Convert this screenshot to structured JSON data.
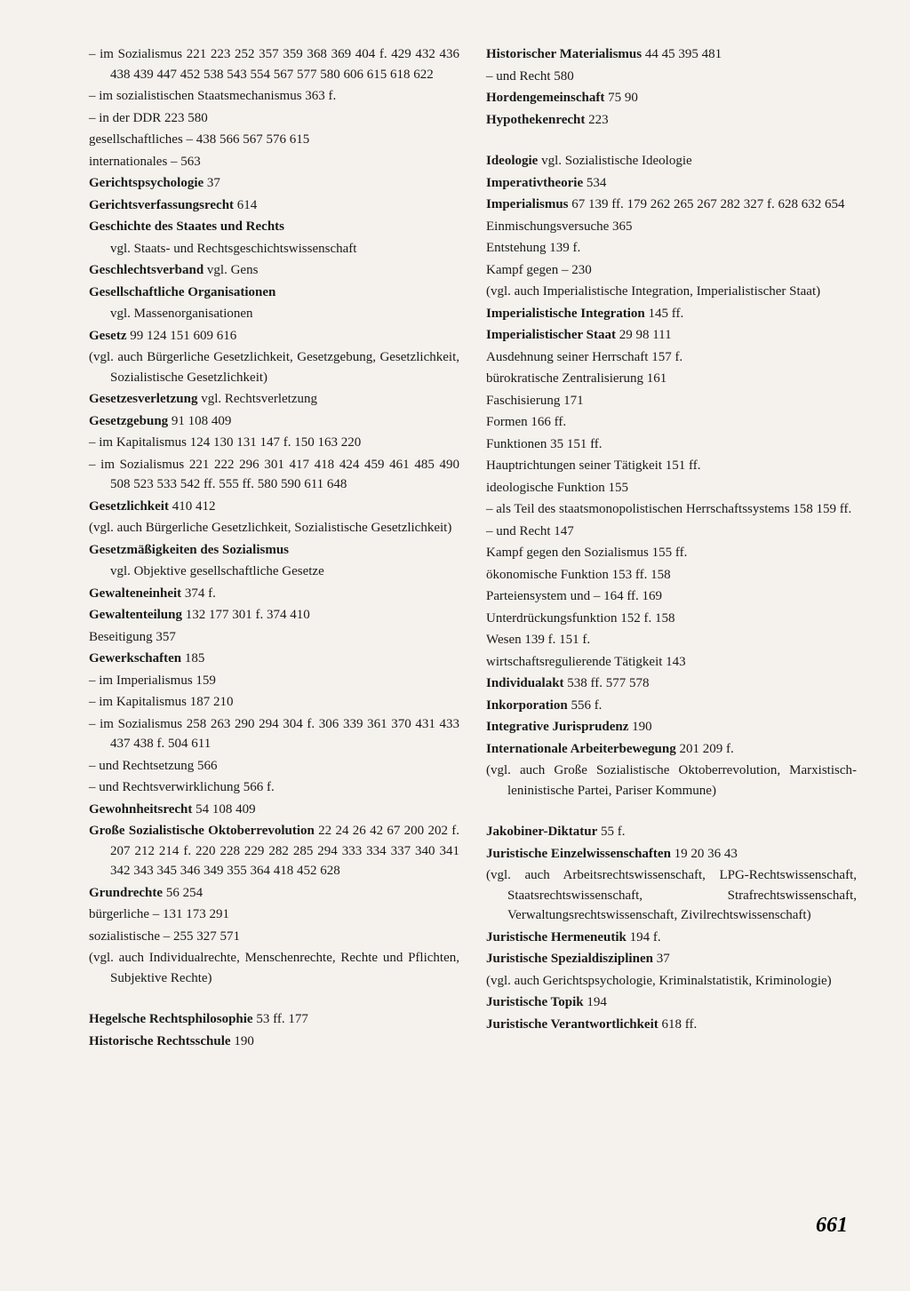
{
  "page_number": "661",
  "left_column": [
    {
      "type": "entry",
      "text": "– im Sozialismus  221 223 252 357 359 368 369 404 f. 429 432 436 438 439 447 452 538 543 554 567 577 580 606 615 618 622"
    },
    {
      "type": "entry",
      "text": "– im sozialistischen Staatsmechanismus 363 f."
    },
    {
      "type": "entry",
      "text": "– in der DDR  223 580"
    },
    {
      "type": "entry",
      "text": "gesellschaftliches –  438 566 567 576 615"
    },
    {
      "type": "entry",
      "text": "internationales –  563"
    },
    {
      "type": "entry",
      "bold_prefix": "Gerichtspsychologie",
      "text": "  37"
    },
    {
      "type": "entry",
      "bold_prefix": "Gerichtsverfassungsrecht",
      "text": "  614"
    },
    {
      "type": "entry",
      "bold_prefix": "Geschichte des Staates und Rechts",
      "text": ""
    },
    {
      "type": "sub-entry",
      "text": "vgl. Staats- und Rechtsgeschichtswissenschaft"
    },
    {
      "type": "entry",
      "bold_prefix": "Geschlechtsverband",
      "text": " vgl. Gens"
    },
    {
      "type": "entry",
      "bold_prefix": "Gesellschaftliche Organisationen",
      "text": ""
    },
    {
      "type": "sub-entry",
      "text": "vgl. Massenorganisationen"
    },
    {
      "type": "entry",
      "bold_prefix": "Gesetz",
      "text": "  99 124 151 609 616"
    },
    {
      "type": "entry",
      "text": "(vgl. auch Bürgerliche Gesetzlichkeit, Gesetzgebung, Gesetzlichkeit, Sozialistische Gesetzlichkeit)"
    },
    {
      "type": "entry",
      "bold_prefix": "Gesetzesverletzung",
      "text": " vgl. Rechtsverletzung"
    },
    {
      "type": "entry",
      "bold_prefix": "Gesetzgebung",
      "text": "  91 108 409"
    },
    {
      "type": "entry",
      "text": "– im Kapitalismus  124 130 131 147 f. 150 163 220"
    },
    {
      "type": "entry",
      "text": "– im Sozialismus  221 222 296 301 417 418 424 459 461 485 490 508 523 533 542 ff. 555 ff. 580 590 611 648"
    },
    {
      "type": "entry",
      "bold_prefix": "Gesetzlichkeit",
      "text": "  410 412"
    },
    {
      "type": "entry",
      "text": "(vgl. auch Bürgerliche Gesetzlichkeit, Sozialistische Gesetzlichkeit)"
    },
    {
      "type": "entry",
      "bold_prefix": "Gesetzmäßigkeiten des Sozialismus",
      "text": ""
    },
    {
      "type": "sub-entry",
      "text": "vgl. Objektive gesellschaftliche Gesetze"
    },
    {
      "type": "entry",
      "bold_prefix": "Gewalteneinheit",
      "text": "  374 f."
    },
    {
      "type": "entry",
      "bold_prefix": "Gewaltenteilung",
      "text": "  132 177 301 f. 374 410"
    },
    {
      "type": "entry",
      "text": "Beseitigung  357"
    },
    {
      "type": "entry",
      "bold_prefix": "Gewerkschaften",
      "text": "  185"
    },
    {
      "type": "entry",
      "text": "– im Imperialismus  159"
    },
    {
      "type": "entry",
      "text": "– im Kapitalismus  187 210"
    },
    {
      "type": "entry",
      "text": "– im Sozialismus  258 263 290 294 304 f. 306 339 361 370 431 433 437 438 f. 504 611"
    },
    {
      "type": "entry",
      "text": "– und Rechtsetzung  566"
    },
    {
      "type": "entry",
      "text": "– und Rechtsverwirklichung  566 f."
    },
    {
      "type": "entry",
      "bold_prefix": "Gewohnheitsrecht",
      "text": "  54 108 409"
    },
    {
      "type": "entry",
      "bold_prefix": "Große Sozialistische Oktoberrevolution",
      "text": "  22 24 26 42 67 200 202 f. 207 212 214 f. 220 228 229 282 285 294 333 334 337 340 341 342 343 345 346 349 355 364 418 452 628"
    },
    {
      "type": "entry",
      "bold_prefix": "Grundrechte",
      "text": "  56 254"
    },
    {
      "type": "entry",
      "text": "bürgerliche –  131 173 291"
    },
    {
      "type": "entry",
      "text": "sozialistische –  255 327 571"
    },
    {
      "type": "entry",
      "text": "(vgl. auch Individualrechte, Menschenrechte, Rechte und Pflichten, Subjektive Rechte)"
    },
    {
      "type": "gap"
    },
    {
      "type": "entry",
      "bold_prefix": "Hegelsche Rechtsphilosophie",
      "text": "  53 ff. 177"
    },
    {
      "type": "entry",
      "bold_prefix": "Historische Rechtsschule",
      "text": "  190"
    }
  ],
  "right_column": [
    {
      "type": "entry",
      "bold_prefix": "Historischer Materialismus",
      "text": "  44 45 395 481"
    },
    {
      "type": "entry",
      "text": "– und Recht  580"
    },
    {
      "type": "entry",
      "bold_prefix": "Hordengemeinschaft",
      "text": "  75 90"
    },
    {
      "type": "entry",
      "bold_prefix": "Hypothekenrecht",
      "text": "  223"
    },
    {
      "type": "gap"
    },
    {
      "type": "gap"
    },
    {
      "type": "entry",
      "bold_prefix": "Ideologie",
      "text": " vgl. Sozialistische Ideologie"
    },
    {
      "type": "entry",
      "bold_prefix": "Imperativtheorie",
      "text": "  534"
    },
    {
      "type": "entry",
      "bold_prefix": "Imperialismus",
      "text": "  67 139 ff. 179 262 265 267 282 327 f. 628 632 654"
    },
    {
      "type": "entry",
      "text": "Einmischungsversuche  365"
    },
    {
      "type": "entry",
      "text": "Entstehung  139 f."
    },
    {
      "type": "entry",
      "text": "Kampf gegen –  230"
    },
    {
      "type": "entry",
      "text": "(vgl. auch Imperialistische Integration, Imperialistischer Staat)"
    },
    {
      "type": "entry",
      "bold_prefix": "Imperialistische Integration",
      "text": "  145 ff."
    },
    {
      "type": "entry",
      "bold_prefix": "Imperialistischer Staat",
      "text": "  29 98 111"
    },
    {
      "type": "entry",
      "text": "Ausdehnung seiner Herrschaft  157 f."
    },
    {
      "type": "entry",
      "text": "bürokratische Zentralisierung  161"
    },
    {
      "type": "entry",
      "text": "Faschisierung  171"
    },
    {
      "type": "entry",
      "text": "Formen  166 ff."
    },
    {
      "type": "entry",
      "text": "Funktionen  35 151 ff."
    },
    {
      "type": "entry",
      "text": "Hauptrichtungen seiner Tätigkeit  151 ff."
    },
    {
      "type": "entry",
      "text": "ideologische Funktion  155"
    },
    {
      "type": "entry",
      "text": "– als Teil des staatsmonopolistischen Herrschaftssystems  158 159 ff."
    },
    {
      "type": "entry",
      "text": "– und Recht  147"
    },
    {
      "type": "entry",
      "text": "Kampf gegen den Sozialismus  155 ff."
    },
    {
      "type": "entry",
      "text": "ökonomische Funktion  153 ff. 158"
    },
    {
      "type": "entry",
      "text": "Parteiensystem und –  164 ff. 169"
    },
    {
      "type": "entry",
      "text": "Unterdrückungsfunktion  152 f. 158"
    },
    {
      "type": "entry",
      "text": "Wesen  139 f. 151 f."
    },
    {
      "type": "entry",
      "text": "wirtschaftsregulierende Tätigkeit  143"
    },
    {
      "type": "entry",
      "bold_prefix": "Individualakt",
      "text": "  538 ff. 577 578"
    },
    {
      "type": "entry",
      "bold_prefix": "Inkorporation",
      "text": "  556 f."
    },
    {
      "type": "entry",
      "bold_prefix": "Integrative Jurisprudenz",
      "text": "  190"
    },
    {
      "type": "entry",
      "bold_prefix": "Internationale Arbeiterbewegung",
      "text": "  201 209 f."
    },
    {
      "type": "entry",
      "text": "(vgl. auch Große Sozialistische Oktoberrevolution, Marxistisch-leninistische Partei, Pariser Kommune)"
    },
    {
      "type": "gap"
    },
    {
      "type": "gap"
    },
    {
      "type": "entry",
      "bold_prefix": "Jakobiner-Diktatur",
      "text": "  55 f."
    },
    {
      "type": "entry",
      "bold_prefix": "Juristische Einzelwissenschaften",
      "text": " 19 20 36 43"
    },
    {
      "type": "entry",
      "text": "(vgl. auch Arbeitsrechtswissenschaft, LPG-Rechtswissenschaft, Staatsrechtswissenschaft, Strafrechtswissenschaft, Verwaltungsrechtswissenschaft, Zivilrechtswissenschaft)"
    },
    {
      "type": "entry",
      "bold_prefix": "Juristische Hermeneutik",
      "text": "  194 f."
    },
    {
      "type": "entry",
      "bold_prefix": "Juristische Spezialdisziplinen",
      "text": "  37"
    },
    {
      "type": "entry",
      "text": "(vgl. auch Gerichtspsychologie, Kriminalstatistik, Kriminologie)"
    },
    {
      "type": "entry",
      "bold_prefix": "Juristische Topik",
      "text": "  194"
    },
    {
      "type": "entry",
      "bold_prefix": "Juristische Verantwortlichkeit",
      "text": "  618 ff."
    }
  ]
}
